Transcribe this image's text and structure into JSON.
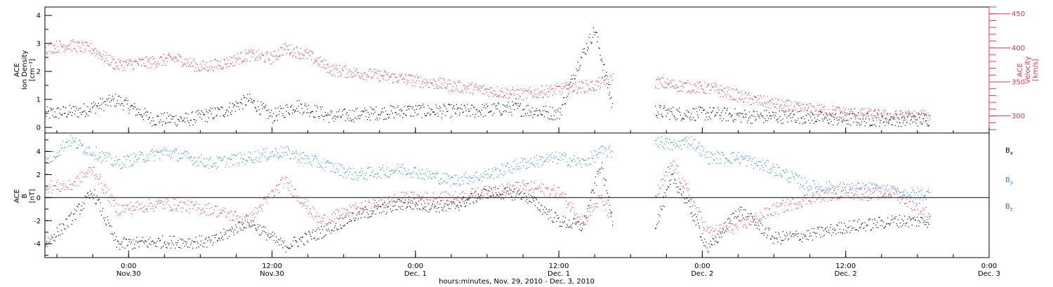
{
  "figure": {
    "x_axis_title": "hours:minutes, Nov. 29, 2010 - Dec. 3, 2010",
    "x_ticks": [
      {
        "time": "2010-11-30T00:00",
        "top": "0:00",
        "bottom": "Nov.30"
      },
      {
        "time": "2010-11-30T12:00",
        "top": "12:00",
        "bottom": "Nov.30"
      },
      {
        "time": "2010-12-01T00:00",
        "top": "0:00",
        "bottom": "Dec. 1"
      },
      {
        "time": "2010-12-01T12:00",
        "top": "12:00",
        "bottom": "Dec. 1"
      },
      {
        "time": "2010-12-02T00:00",
        "top": "0:00",
        "bottom": "Dec. 2"
      },
      {
        "time": "2010-12-02T12:00",
        "top": "12:00",
        "bottom": "Dec. 2"
      },
      {
        "time": "2010-12-03T00:00",
        "top": "0:00",
        "bottom": "Dec. 3"
      }
    ],
    "x_range": [
      "2010-11-29T17:00",
      "2010-12-03T00:00"
    ],
    "colors": {
      "density": "#000000",
      "velocity": "#e8305f",
      "bx": "#000000",
      "by": "#1e87e8",
      "bz": "#e8305f"
    }
  },
  "chart_data": [
    {
      "type": "scatter",
      "ylabel": [
        "ACE",
        "Ion Density",
        "[cm⁻³]"
      ],
      "y2label": [
        "ACE",
        "Velocity",
        "[km/s]"
      ],
      "ylim": [
        -0.2,
        4.3
      ],
      "y2lim": [
        275,
        460
      ],
      "yticks": [
        0,
        1,
        2,
        3,
        4
      ],
      "y2ticks": [
        300,
        350,
        400,
        450
      ],
      "series": [
        {
          "key": "density",
          "axis": "left",
          "x": [
            "2010-11-29T17:00",
            "2010-11-29T20:00",
            "2010-11-29T23:00",
            "2010-11-30T02:00",
            "2010-11-30T05:00",
            "2010-11-30T08:00",
            "2010-11-30T10:00",
            "2010-11-30T12:00",
            "2010-11-30T14:00",
            "2010-11-30T17:00",
            "2010-11-30T20:00",
            "2010-11-30T23:00",
            "2010-12-01T02:00",
            "2010-12-01T05:00",
            "2010-12-01T08:00",
            "2010-12-01T10:00",
            "2010-12-01T12:00",
            "2010-12-01T13:30",
            "2010-12-01T15:00",
            "2010-12-01T16:30",
            "2010-12-01T20:00",
            "2010-12-01T22:00",
            "2010-12-02T01:00",
            "2010-12-02T04:00",
            "2010-12-02T08:00",
            "2010-12-02T12:00",
            "2010-12-02T16:00",
            "2010-12-02T19:00"
          ],
          "y": [
            0.5,
            0.6,
            1.0,
            0.3,
            0.3,
            0.6,
            1.0,
            0.4,
            0.8,
            0.4,
            0.5,
            0.6,
            0.6,
            0.6,
            0.7,
            0.6,
            0.5,
            2.2,
            3.5,
            0.7,
            0.6,
            0.5,
            0.5,
            0.4,
            0.4,
            0.3,
            0.3,
            0.3
          ]
        },
        {
          "key": "velocity",
          "axis": "right",
          "x": [
            "2010-11-29T17:00",
            "2010-11-29T19:00",
            "2010-11-29T21:00",
            "2010-11-29T23:00",
            "2010-11-30T02:00",
            "2010-11-30T04:00",
            "2010-11-30T06:00",
            "2010-11-30T08:00",
            "2010-11-30T10:00",
            "2010-11-30T12:00",
            "2010-11-30T13:00",
            "2010-11-30T15:00",
            "2010-11-30T17:00",
            "2010-11-30T20:00",
            "2010-11-30T23:00",
            "2010-12-01T03:00",
            "2010-12-01T06:00",
            "2010-12-01T09:00",
            "2010-12-01T12:00",
            "2010-12-01T15:00",
            "2010-12-01T16:30",
            "2010-12-01T20:00",
            "2010-12-01T22:00",
            "2010-12-02T01:00",
            "2010-12-02T04:00",
            "2010-12-02T08:00",
            "2010-12-02T12:00",
            "2010-12-02T16:00",
            "2010-12-02T19:00"
          ],
          "y": [
            400,
            405,
            398,
            375,
            380,
            385,
            372,
            378,
            390,
            385,
            400,
            390,
            368,
            362,
            355,
            345,
            338,
            332,
            340,
            345,
            356,
            350,
            345,
            340,
            325,
            312,
            305,
            300,
            300
          ]
        }
      ]
    },
    {
      "type": "scatter",
      "ylabel": [
        "ACE",
        "B",
        "[nT]"
      ],
      "ylim": [
        -5.2,
        5.6
      ],
      "yticks": [
        -4,
        -2,
        0,
        2,
        4
      ],
      "legend": [
        "Bx",
        "By",
        "Bz"
      ],
      "legend_position": "right",
      "series": [
        {
          "key": "bx",
          "name": "Bx",
          "x": [
            "2010-11-29T17:00",
            "2010-11-29T19:00",
            "2010-11-29T21:00",
            "2010-11-29T23:00",
            "2010-11-30T03:00",
            "2010-11-30T07:00",
            "2010-11-30T10:00",
            "2010-11-30T13:00",
            "2010-11-30T16:00",
            "2010-11-30T19:00",
            "2010-11-30T23:00",
            "2010-12-01T03:00",
            "2010-12-01T06:00",
            "2010-12-01T09:00",
            "2010-12-01T12:00",
            "2010-12-01T14:00",
            "2010-12-01T15:30",
            "2010-12-01T16:30",
            "2010-12-01T20:00",
            "2010-12-01T21:30",
            "2010-12-01T23:00",
            "2010-12-02T00:30",
            "2010-12-02T03:00",
            "2010-12-02T06:00",
            "2010-12-02T09:00",
            "2010-12-02T12:00",
            "2010-12-02T14:00",
            "2010-12-02T16:00",
            "2010-12-02T19:00"
          ],
          "y": [
            -4.0,
            -2.0,
            0.5,
            -4.0,
            -3.8,
            -3.8,
            -2.0,
            -4.2,
            -3.0,
            -1.5,
            -0.5,
            -0.8,
            0.5,
            0.3,
            -2.0,
            -2.5,
            3.0,
            -2.0,
            -2.5,
            1.8,
            -1.0,
            -4.5,
            -1.0,
            -3.5,
            -3.2,
            -2.5,
            -2.3,
            -2.0,
            -2.0
          ]
        },
        {
          "key": "by",
          "name": "By",
          "x": [
            "2010-11-29T17:00",
            "2010-11-29T19:00",
            "2010-11-29T21:00",
            "2010-11-29T23:00",
            "2010-11-30T03:00",
            "2010-11-30T07:00",
            "2010-11-30T10:00",
            "2010-11-30T13:00",
            "2010-11-30T16:00",
            "2010-11-30T19:00",
            "2010-11-30T23:00",
            "2010-12-01T03:00",
            "2010-12-01T06:00",
            "2010-12-01T09:00",
            "2010-12-01T12:00",
            "2010-12-01T14:00",
            "2010-12-01T15:30",
            "2010-12-01T16:30",
            "2010-12-01T20:00",
            "2010-12-01T21:30",
            "2010-12-01T23:00",
            "2010-12-02T00:30",
            "2010-12-02T03:00",
            "2010-12-02T06:00",
            "2010-12-02T09:00",
            "2010-12-02T12:00",
            "2010-12-02T14:00",
            "2010-12-02T16:00",
            "2010-12-02T19:00"
          ],
          "y": [
            3.0,
            5.0,
            4.0,
            3.0,
            4.0,
            3.0,
            3.5,
            4.0,
            3.0,
            2.0,
            2.5,
            1.5,
            2.0,
            3.0,
            3.5,
            3.0,
            4.0,
            4.0,
            5.0,
            4.5,
            5.0,
            3.5,
            3.5,
            2.5,
            1.0,
            0.8,
            0.8,
            0.5,
            0.3
          ]
        },
        {
          "key": "bz",
          "name": "Bz",
          "x": [
            "2010-11-29T17:00",
            "2010-11-29T19:00",
            "2010-11-29T21:00",
            "2010-11-29T23:00",
            "2010-11-30T03:00",
            "2010-11-30T07:00",
            "2010-11-30T10:00",
            "2010-11-30T13:00",
            "2010-11-30T16:00",
            "2010-11-30T19:00",
            "2010-11-30T23:00",
            "2010-12-01T03:00",
            "2010-12-01T06:00",
            "2010-12-01T09:00",
            "2010-12-01T12:00",
            "2010-12-01T14:00",
            "2010-12-01T15:30",
            "2010-12-01T16:30",
            "2010-12-01T20:00",
            "2010-12-01T21:30",
            "2010-12-01T23:00",
            "2010-12-02T00:30",
            "2010-12-02T03:00",
            "2010-12-02T06:00",
            "2010-12-02T09:00",
            "2010-12-02T12:00",
            "2010-12-02T14:00",
            "2010-12-02T16:00",
            "2010-12-02T19:00"
          ],
          "y": [
            1.0,
            1.0,
            2.5,
            -1.0,
            -0.5,
            -1.0,
            -2.0,
            1.5,
            -2.0,
            -1.0,
            0.0,
            0.0,
            0.5,
            1.0,
            0.5,
            -2.0,
            0.0,
            -2.0,
            0.0,
            3.0,
            0.0,
            -3.0,
            -2.5,
            -1.0,
            0.0,
            0.5,
            0.3,
            0.5,
            -1.5
          ]
        }
      ]
    }
  ]
}
